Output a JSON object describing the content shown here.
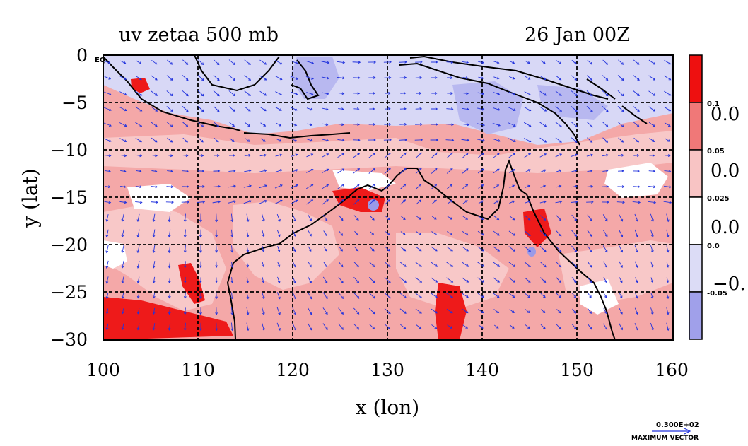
{
  "map": {
    "title_left": "uv zetaa 500 mb",
    "title_right": "26 Jan 00Z",
    "xlabel": "x (lon)",
    "ylabel": "y (lat)",
    "x_ticks": [
      "100",
      "110",
      "120",
      "130",
      "140",
      "150",
      "160"
    ],
    "y_ticks": [
      "0",
      "−5",
      "−10",
      "−15",
      "−20",
      "−25",
      "−30"
    ],
    "corner_label": "EQ",
    "lon_range": [
      100,
      160
    ],
    "lat_range": [
      -30,
      0
    ],
    "grid": true
  },
  "colorbar": {
    "colors": [
      "#ee1010",
      "#f07878",
      "#f8c4c4",
      "#ffffff",
      "#dcdcf6",
      "#a0a0ea"
    ],
    "small_labels": [
      "0.1",
      "0.05",
      "0.025",
      "0.0",
      "-0.05"
    ],
    "big_labels": [
      "0.0",
      "0.0",
      "0.0",
      "−0."
    ]
  },
  "vector_key": {
    "value": "0.300E+02",
    "label": "MAXIMUM VECTOR"
  },
  "colors": {
    "vector": "#2233dd",
    "land": "#f2b0b0"
  }
}
